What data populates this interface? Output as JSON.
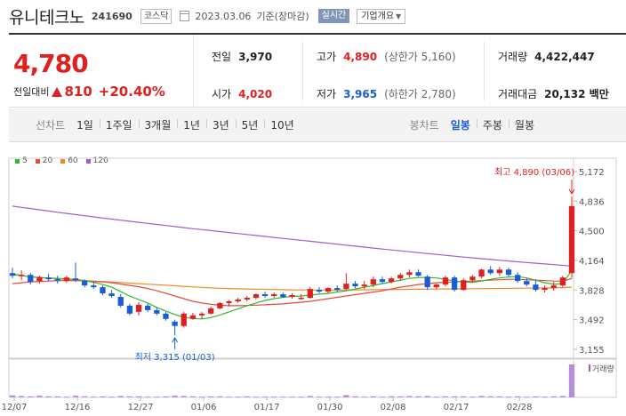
{
  "header": {
    "stock_name": "유니테크노",
    "stock_code": "241690",
    "market": "코스닥",
    "date": "2023.03.06",
    "basis": "기준(장마감)",
    "realtime_label": "실시간",
    "company_info_label": "기업개요"
  },
  "price": {
    "current": "4,780",
    "change_label": "전일대비",
    "change": "810",
    "change_pct": "+20.40%",
    "direction": "up"
  },
  "stats": {
    "prev_close_label": "전일",
    "prev_close": "3,970",
    "high_label": "고가",
    "high": "4,890",
    "upper_limit_label": "(상한가 5,160)",
    "volume_label": "거래량",
    "volume": "4,422,447",
    "open_label": "시가",
    "open": "4,020",
    "low_label": "저가",
    "low": "3,965",
    "lower_limit_label": "(하한가 2,780)",
    "amount_label": "거래대금",
    "amount": "20,132 백만"
  },
  "period_tabs": {
    "label": "선차트",
    "items": [
      "1일",
      "1주일",
      "3개월",
      "1년",
      "3년",
      "5년",
      "10년"
    ]
  },
  "candle_tabs": {
    "label": "봉차트",
    "items": [
      "일봉",
      "주봉",
      "월봉"
    ],
    "active": "일봉"
  },
  "colors": {
    "up": "#e02020",
    "down": "#1a5dd6",
    "ma5": "#2eb82e",
    "ma20": "#e84a3c",
    "ma60": "#f08a24",
    "ma120": "#a05cc8"
  },
  "chart_data": {
    "type": "candlestick",
    "legend": [
      {
        "name": "5",
        "color": "#2eb82e"
      },
      {
        "name": "20",
        "color": "#e84a3c"
      },
      {
        "name": "60",
        "color": "#f08a24"
      },
      {
        "name": "120",
        "color": "#a05cc8"
      }
    ],
    "y_ticks": [
      5172,
      4836,
      4500,
      4164,
      3828,
      3492,
      3155
    ],
    "ylim": [
      3155,
      5172
    ],
    "x_ticks": [
      "12/07",
      "12/16",
      "12/27",
      "01/06",
      "01/17",
      "01/30",
      "02/08",
      "02/17",
      "02/28"
    ],
    "x_tick_index": [
      0,
      7,
      14,
      21,
      28,
      35,
      42,
      49,
      56
    ],
    "max_annotation": "최고 4,890 (03/06)",
    "min_annotation": "최저 3,315 (01/03)",
    "volume_label": "거래량",
    "candles": [
      {
        "o": 4020,
        "h": 4080,
        "l": 3960,
        "c": 3990
      },
      {
        "o": 3990,
        "h": 4050,
        "l": 3940,
        "c": 4000
      },
      {
        "o": 4000,
        "h": 4020,
        "l": 3890,
        "c": 3920
      },
      {
        "o": 3930,
        "h": 3990,
        "l": 3900,
        "c": 3975
      },
      {
        "o": 3970,
        "h": 4010,
        "l": 3930,
        "c": 3950
      },
      {
        "o": 3950,
        "h": 3990,
        "l": 3900,
        "c": 3930
      },
      {
        "o": 3930,
        "h": 3990,
        "l": 3910,
        "c": 3970
      },
      {
        "o": 3960,
        "h": 4140,
        "l": 3920,
        "c": 3940
      },
      {
        "o": 3930,
        "h": 3950,
        "l": 3860,
        "c": 3880
      },
      {
        "o": 3880,
        "h": 3920,
        "l": 3840,
        "c": 3860
      },
      {
        "o": 3860,
        "h": 3880,
        "l": 3770,
        "c": 3790
      },
      {
        "o": 3790,
        "h": 3830,
        "l": 3740,
        "c": 3760
      },
      {
        "o": 3750,
        "h": 3780,
        "l": 3630,
        "c": 3650
      },
      {
        "o": 3650,
        "h": 3670,
        "l": 3540,
        "c": 3560
      },
      {
        "o": 3580,
        "h": 3690,
        "l": 3540,
        "c": 3660
      },
      {
        "o": 3650,
        "h": 3670,
        "l": 3580,
        "c": 3600
      },
      {
        "o": 3600,
        "h": 3630,
        "l": 3540,
        "c": 3560
      },
      {
        "o": 3560,
        "h": 3580,
        "l": 3480,
        "c": 3500
      },
      {
        "o": 3470,
        "h": 3490,
        "l": 3315,
        "c": 3420
      },
      {
        "o": 3420,
        "h": 3580,
        "l": 3400,
        "c": 3560
      },
      {
        "o": 3500,
        "h": 3570,
        "l": 3490,
        "c": 3540
      },
      {
        "o": 3540,
        "h": 3580,
        "l": 3500,
        "c": 3560
      },
      {
        "o": 3560,
        "h": 3640,
        "l": 3550,
        "c": 3620
      },
      {
        "o": 3620,
        "h": 3690,
        "l": 3610,
        "c": 3680
      },
      {
        "o": 3680,
        "h": 3710,
        "l": 3640,
        "c": 3700
      },
      {
        "o": 3700,
        "h": 3740,
        "l": 3680,
        "c": 3720
      },
      {
        "o": 3720,
        "h": 3760,
        "l": 3700,
        "c": 3740
      },
      {
        "o": 3740,
        "h": 3790,
        "l": 3720,
        "c": 3780
      },
      {
        "o": 3780,
        "h": 3810,
        "l": 3740,
        "c": 3760
      },
      {
        "o": 3760,
        "h": 3800,
        "l": 3740,
        "c": 3780
      },
      {
        "o": 3780,
        "h": 3800,
        "l": 3740,
        "c": 3750
      },
      {
        "o": 3750,
        "h": 3790,
        "l": 3730,
        "c": 3770
      },
      {
        "o": 3740,
        "h": 3780,
        "l": 3720,
        "c": 3740
      },
      {
        "o": 3740,
        "h": 3860,
        "l": 3730,
        "c": 3840
      },
      {
        "o": 3830,
        "h": 3860,
        "l": 3790,
        "c": 3810
      },
      {
        "o": 3810,
        "h": 3860,
        "l": 3790,
        "c": 3850
      },
      {
        "o": 3850,
        "h": 3880,
        "l": 3810,
        "c": 3830
      },
      {
        "o": 3840,
        "h": 4020,
        "l": 3830,
        "c": 3900
      },
      {
        "o": 3900,
        "h": 3930,
        "l": 3850,
        "c": 3870
      },
      {
        "o": 3870,
        "h": 3930,
        "l": 3840,
        "c": 3890
      },
      {
        "o": 3890,
        "h": 3980,
        "l": 3860,
        "c": 3950
      },
      {
        "o": 3950,
        "h": 3980,
        "l": 3900,
        "c": 3920
      },
      {
        "o": 3920,
        "h": 3980,
        "l": 3900,
        "c": 3960
      },
      {
        "o": 3960,
        "h": 4020,
        "l": 3930,
        "c": 4000
      },
      {
        "o": 4000,
        "h": 4060,
        "l": 3970,
        "c": 4030
      },
      {
        "o": 4030,
        "h": 4060,
        "l": 3980,
        "c": 3990
      },
      {
        "o": 3980,
        "h": 4000,
        "l": 3830,
        "c": 3860
      },
      {
        "o": 3860,
        "h": 3900,
        "l": 3840,
        "c": 3890
      },
      {
        "o": 3890,
        "h": 3990,
        "l": 3870,
        "c": 3970
      },
      {
        "o": 3970,
        "h": 3990,
        "l": 3810,
        "c": 3830
      },
      {
        "o": 3830,
        "h": 3960,
        "l": 3820,
        "c": 3940
      },
      {
        "o": 3940,
        "h": 4000,
        "l": 3910,
        "c": 3980
      },
      {
        "o": 3980,
        "h": 4070,
        "l": 3960,
        "c": 4060
      },
      {
        "o": 4060,
        "h": 4100,
        "l": 4000,
        "c": 4020
      },
      {
        "o": 4020,
        "h": 4090,
        "l": 3990,
        "c": 4060
      },
      {
        "o": 4060,
        "h": 4080,
        "l": 3980,
        "c": 4000
      },
      {
        "o": 4000,
        "h": 4030,
        "l": 3910,
        "c": 3930
      },
      {
        "o": 3930,
        "h": 3960,
        "l": 3870,
        "c": 3890
      },
      {
        "o": 3890,
        "h": 3950,
        "l": 3810,
        "c": 3830
      },
      {
        "o": 3830,
        "h": 3880,
        "l": 3800,
        "c": 3850
      },
      {
        "o": 3850,
        "h": 3920,
        "l": 3820,
        "c": 3880
      },
      {
        "o": 3880,
        "h": 3990,
        "l": 3860,
        "c": 3970
      },
      {
        "o": 4020,
        "h": 4890,
        "l": 3965,
        "c": 4780
      }
    ],
    "volume": [
      0.6,
      0.4,
      0.3,
      0.5,
      0.3,
      0.3,
      0.2,
      0.5,
      0.3,
      0.2,
      0.3,
      0.2,
      0.4,
      0.3,
      0.3,
      0.2,
      0.2,
      0.3,
      0.5,
      0.4,
      0.3,
      0.2,
      0.3,
      0.3,
      0.2,
      0.2,
      0.3,
      0.2,
      0.2,
      0.2,
      0.2,
      0.2,
      0.2,
      0.4,
      0.2,
      0.2,
      0.2,
      0.7,
      0.3,
      0.2,
      0.3,
      0.2,
      0.3,
      0.3,
      0.4,
      0.3,
      0.4,
      0.2,
      0.3,
      0.3,
      0.3,
      0.2,
      0.4,
      0.3,
      0.3,
      0.2,
      0.3,
      0.2,
      0.3,
      0.2,
      0.3,
      0.4,
      10
    ],
    "ma5": [
      4010,
      3995,
      3975,
      3970,
      3965,
      3960,
      3955,
      3948,
      3935,
      3915,
      3890,
      3860,
      3810,
      3760,
      3720,
      3680,
      3630,
      3590,
      3550,
      3520,
      3505,
      3500,
      3515,
      3545,
      3580,
      3615,
      3650,
      3680,
      3710,
      3730,
      3745,
      3755,
      3760,
      3770,
      3780,
      3790,
      3805,
      3820,
      3840,
      3860,
      3880,
      3900,
      3920,
      3940,
      3960,
      3970,
      3970,
      3965,
      3950,
      3930,
      3920,
      3915,
      3930,
      3950,
      3965,
      3975,
      3980,
      3965,
      3940,
      3910,
      3895,
      3900,
      4050
    ],
    "ma20": [
      3900,
      3910,
      3920,
      3925,
      3930,
      3935,
      3935,
      3935,
      3930,
      3925,
      3920,
      3910,
      3895,
      3880,
      3865,
      3845,
      3820,
      3790,
      3760,
      3730,
      3700,
      3680,
      3665,
      3655,
      3650,
      3650,
      3652,
      3656,
      3660,
      3665,
      3670,
      3680,
      3690,
      3700,
      3715,
      3730,
      3745,
      3760,
      3775,
      3790,
      3805,
      3820,
      3840,
      3860,
      3875,
      3890,
      3900,
      3910,
      3915,
      3920,
      3925,
      3930,
      3935,
      3940,
      3945,
      3950,
      3950,
      3945,
      3940,
      3935,
      3930,
      3928,
      3960
    ],
    "ma60": [
      4000,
      3990,
      3980,
      3970,
      3962,
      3955,
      3948,
      3942,
      3936,
      3930,
      3924,
      3918,
      3912,
      3906,
      3900,
      3894,
      3888,
      3882,
      3876,
      3870,
      3864,
      3858,
      3852,
      3848,
      3845,
      3842,
      3840,
      3838,
      3836,
      3834,
      3832,
      3830,
      3829,
      3828,
      3828,
      3828,
      3828,
      3829,
      3830,
      3831,
      3832,
      3833,
      3834,
      3835,
      3836,
      3837,
      3838,
      3839,
      3840,
      3841,
      3842,
      3843,
      3844,
      3845,
      3846,
      3847,
      3848,
      3849,
      3850,
      3851,
      3852,
      3855,
      3860
    ],
    "ma120": [
      4780,
      4766,
      4752,
      4738,
      4724,
      4710,
      4697,
      4684,
      4671,
      4658,
      4645,
      4632,
      4620,
      4608,
      4596,
      4584,
      4572,
      4560,
      4548,
      4536,
      4524,
      4513,
      4502,
      4491,
      4480,
      4469,
      4458,
      4447,
      4436,
      4425,
      4414,
      4403,
      4392,
      4381,
      4370,
      4359,
      4348,
      4337,
      4326,
      4315,
      4304,
      4293,
      4282,
      4272,
      4262,
      4252,
      4242,
      4232,
      4222,
      4212,
      4202,
      4193,
      4184,
      4175,
      4166,
      4157,
      4148,
      4140,
      4132,
      4124,
      4116,
      4108,
      4100
    ]
  }
}
